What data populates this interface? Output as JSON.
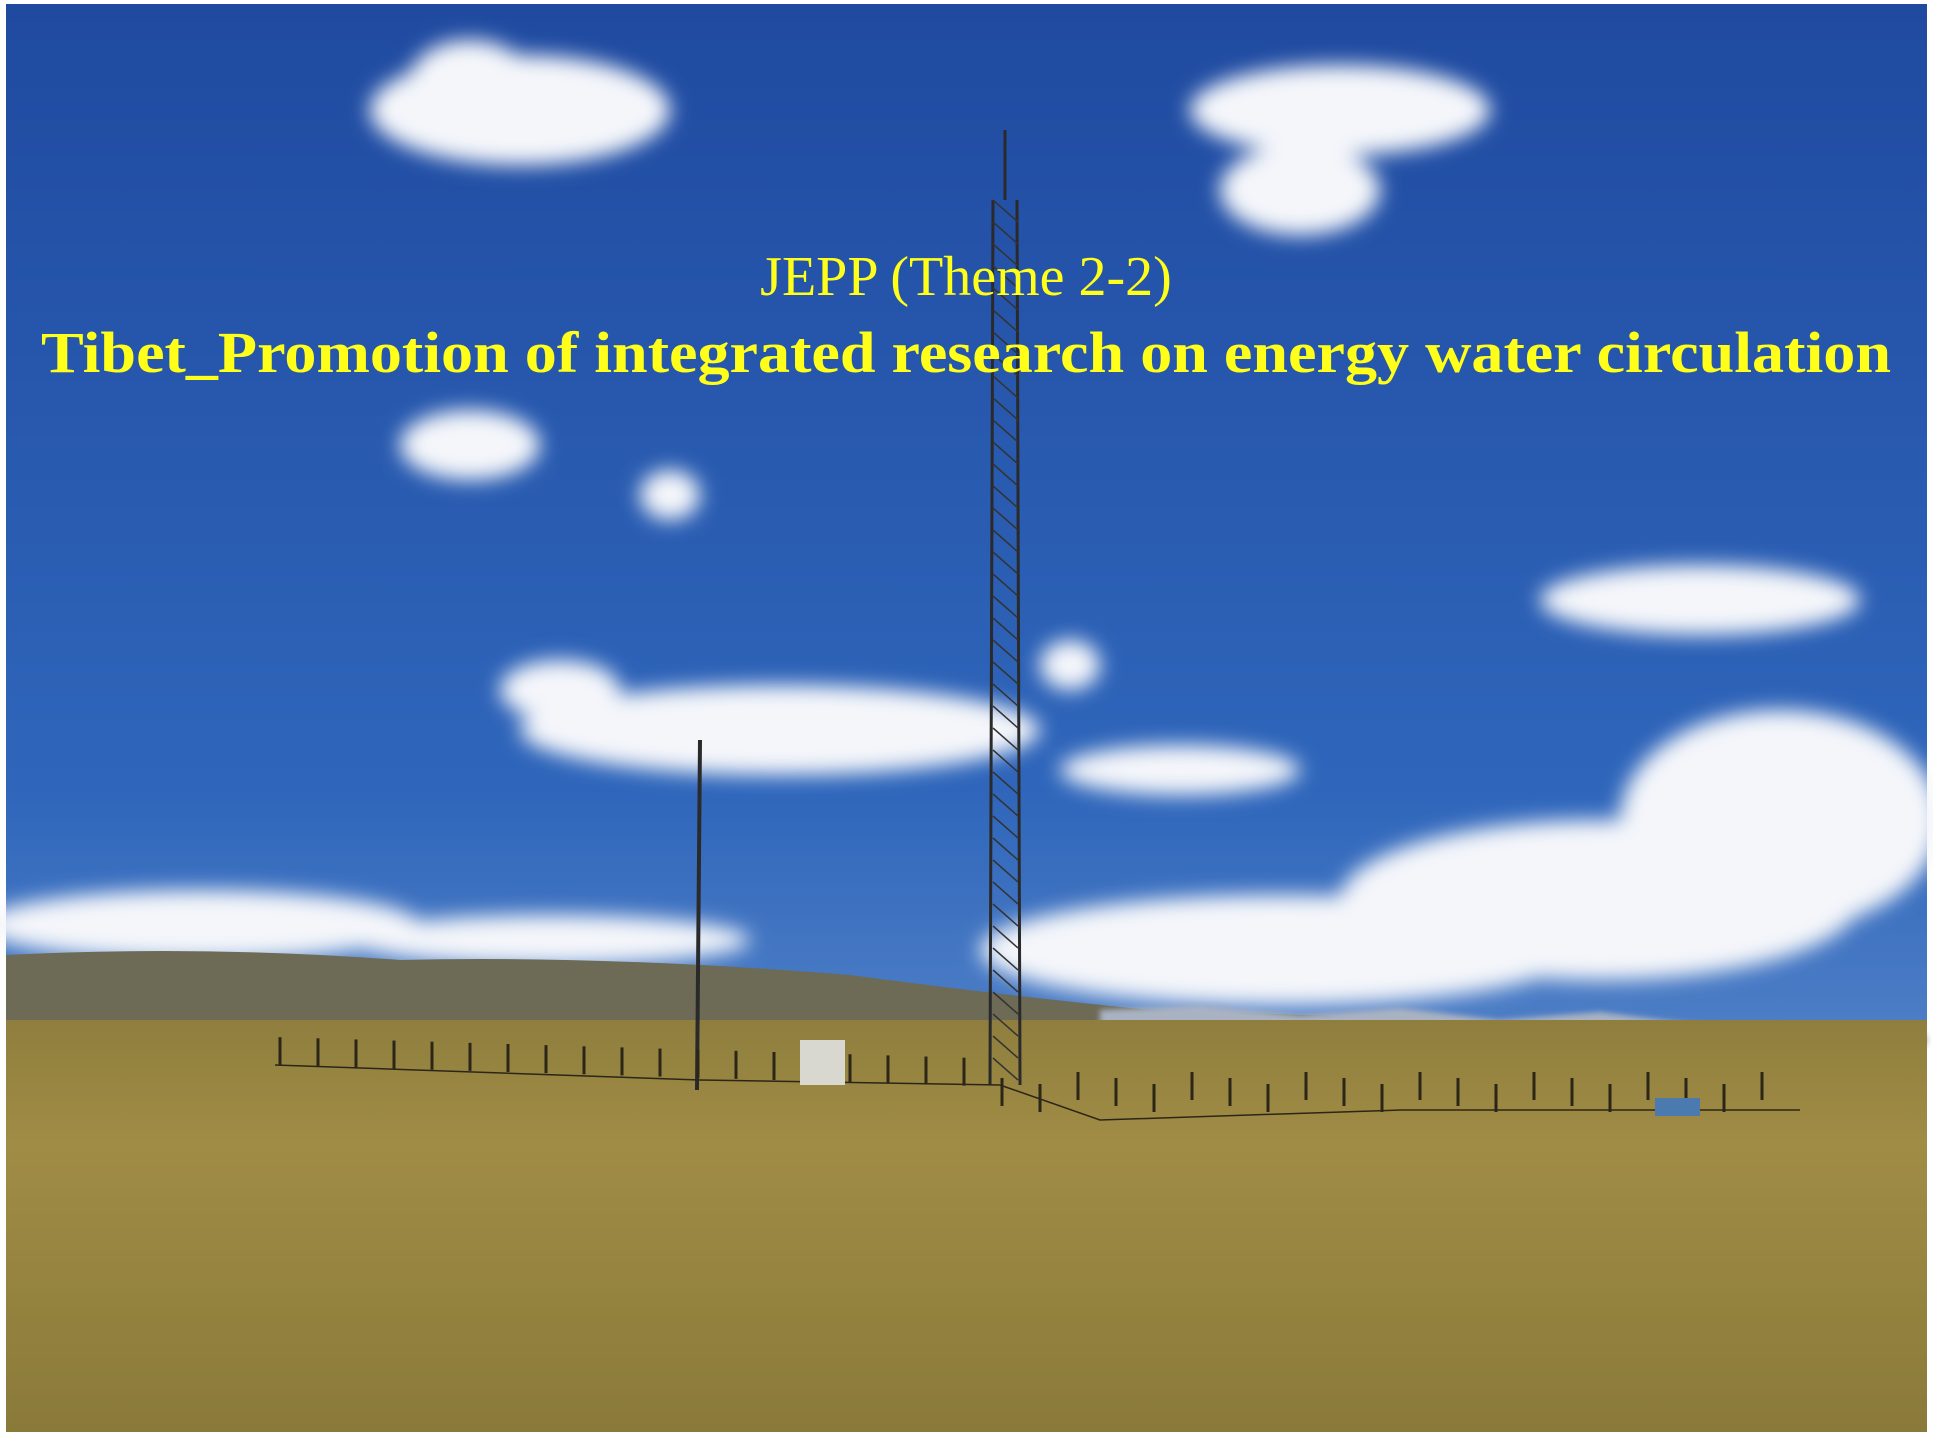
{
  "title": {
    "line1": "JEPP (Theme 2-2)",
    "line2": "Tibet_Promotion of integrated research on energy water circulation"
  }
}
